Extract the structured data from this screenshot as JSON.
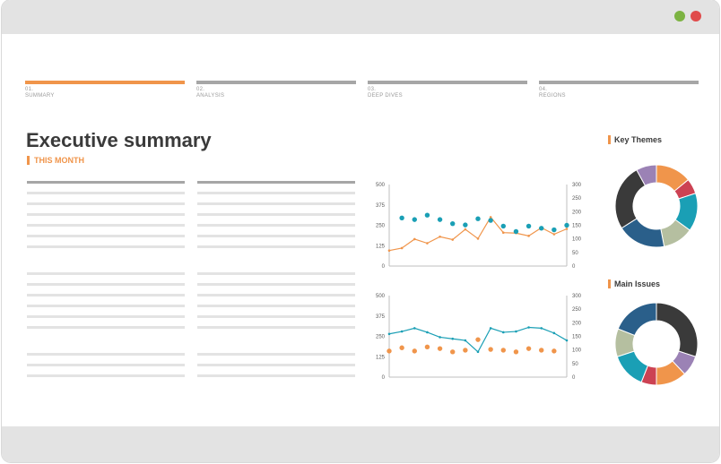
{
  "window": {
    "controls": [
      {
        "name": "green",
        "color": "#7cb342"
      },
      {
        "name": "red",
        "color": "#e04b4b"
      }
    ]
  },
  "steps": [
    {
      "num": "01.",
      "label": "SUMMARY",
      "active": true
    },
    {
      "num": "02.",
      "label": "ANALYSIS",
      "active": false
    },
    {
      "num": "03.",
      "label": "DEEP DIVES",
      "active": false
    },
    {
      "num": "04.",
      "label": "REGIONS",
      "active": false
    }
  ],
  "header": {
    "title": "Executive summary",
    "subtitle": "THIS MONTH"
  },
  "colors": {
    "accent": "#f0954b",
    "teal": "#1a9fb5",
    "navy": "#2a5f8a",
    "dark": "#3a3a3a",
    "purple": "#9b82b5",
    "red": "#cc4253",
    "sage": "#b5bfa0"
  },
  "panels": {
    "key_themes": "Key Themes",
    "main_issues": "Main Issues"
  },
  "chart_data": [
    {
      "type": "line",
      "y_left": {
        "ticks": [
          "500",
          "375",
          "250",
          "125",
          "0"
        ],
        "lim": [
          0,
          500
        ]
      },
      "y_right": {
        "ticks": [
          "300",
          "250",
          "200",
          "150",
          "100",
          "50",
          "0"
        ],
        "lim": [
          0,
          300
        ]
      },
      "series": [
        {
          "kind": "line",
          "axis": "left",
          "color": "#f0954b",
          "values": [
            95,
            110,
            165,
            140,
            180,
            162,
            225,
            168,
            300,
            205,
            202,
            185,
            235,
            195,
            228
          ]
        },
        {
          "kind": "scatter",
          "axis": "left",
          "color": "#1a9fb5",
          "values": [
            null,
            295,
            285,
            312,
            285,
            260,
            252,
            290,
            280,
            245,
            212,
            245,
            232,
            222,
            250
          ]
        }
      ]
    },
    {
      "type": "line",
      "y_left": {
        "ticks": [
          "500",
          "375",
          "250",
          "125",
          "0"
        ],
        "lim": [
          0,
          500
        ]
      },
      "y_right": {
        "ticks": [
          "300",
          "250",
          "200",
          "150",
          "100",
          "50",
          "0"
        ],
        "lim": [
          0,
          300
        ]
      },
      "series": [
        {
          "kind": "line",
          "axis": "left",
          "color": "#1a9fb5",
          "values": [
            265,
            280,
            300,
            275,
            245,
            235,
            225,
            155,
            300,
            275,
            280,
            305,
            300,
            270,
            225
          ]
        },
        {
          "kind": "scatter",
          "axis": "left",
          "color": "#f0954b",
          "values": [
            160,
            180,
            160,
            185,
            175,
            155,
            165,
            230,
            170,
            165,
            155,
            175,
            165,
            160,
            null
          ]
        }
      ]
    },
    {
      "type": "pie",
      "title": "Key Themes",
      "slices": [
        {
          "value": 14,
          "color": "#f0954b"
        },
        {
          "value": 6,
          "color": "#cc4253"
        },
        {
          "value": 15,
          "color": "#1a9fb5"
        },
        {
          "value": 12,
          "color": "#b5bfa0"
        },
        {
          "value": 19,
          "color": "#2a5f8a"
        },
        {
          "value": 26,
          "color": "#3a3a3a"
        },
        {
          "value": 8,
          "color": "#9b82b5"
        }
      ]
    },
    {
      "type": "pie",
      "title": "Main Issues",
      "slices": [
        {
          "value": 30,
          "color": "#3a3a3a"
        },
        {
          "value": 8,
          "color": "#9b82b5"
        },
        {
          "value": 12,
          "color": "#f0954b"
        },
        {
          "value": 6,
          "color": "#cc4253"
        },
        {
          "value": 14,
          "color": "#1a9fb5"
        },
        {
          "value": 11,
          "color": "#b5bfa0"
        },
        {
          "value": 19,
          "color": "#2a5f8a"
        }
      ]
    }
  ]
}
